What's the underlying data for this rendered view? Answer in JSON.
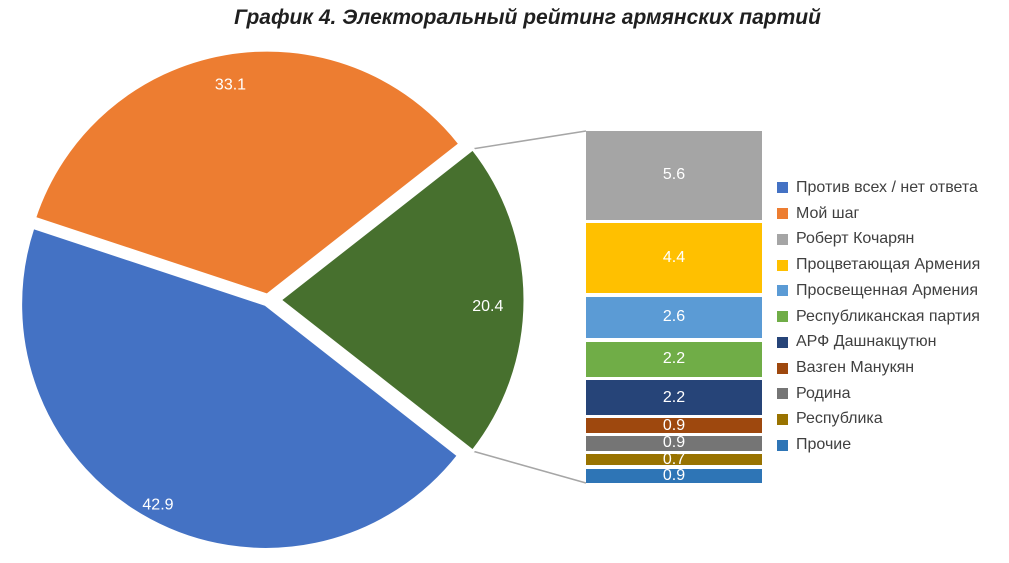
{
  "title": "График 4. Электоральный рейтинг армянских партий",
  "chart_data": {
    "type": "pie",
    "subtype": "bar-of-pie",
    "title": "График 4. Электоральный рейтинг армянских партий",
    "legend_position": "right",
    "slices": [
      {
        "label": "Против всех / нет ответа",
        "value": 42.9,
        "color": "#4472C4"
      },
      {
        "label": "Мой шаг",
        "value": 33.1,
        "color": "#ED7D31"
      },
      {
        "label": "",
        "value": 20.4,
        "color": "#47702E",
        "breakout": true
      }
    ],
    "breakout_bar": {
      "segments": [
        {
          "label": "Роберт Кочарян",
          "value": 5.6,
          "color": "#A5A5A5"
        },
        {
          "label": "Процветающая Армения",
          "value": 4.4,
          "color": "#FFC000"
        },
        {
          "label": "Просвещенная Армения",
          "value": 2.6,
          "color": "#5B9BD5"
        },
        {
          "label": "Республиканская партия",
          "value": 2.2,
          "color": "#70AD47"
        },
        {
          "label": "АРФ Дашнакцутюн",
          "value": 2.2,
          "color": "#264478"
        },
        {
          "label": "Вазген Манукян",
          "value": 0.9,
          "color": "#9E480E"
        },
        {
          "label": "Родина",
          "value": 0.9,
          "color": "#757575"
        },
        {
          "label": "Республика",
          "value": 0.7,
          "color": "#997300"
        },
        {
          "label": "Прочие",
          "value": 0.9,
          "color": "#2E75B6"
        }
      ]
    },
    "label_color": "#ffffff",
    "connector_color": "#A6A6A6"
  }
}
